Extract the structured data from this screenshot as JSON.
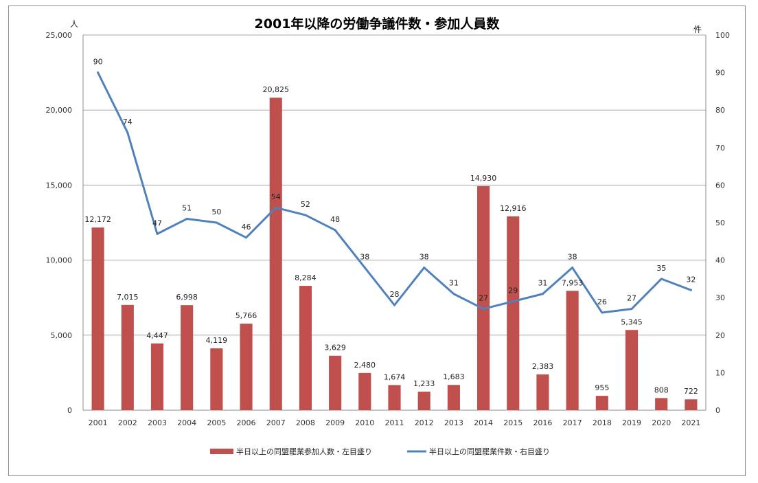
{
  "chart_data": {
    "type": "bar+line",
    "title": "2001年以降の労働争議件数・参加人員数",
    "left_unit": "人",
    "right_unit": "件",
    "categories": [
      "2001",
      "2002",
      "2003",
      "2004",
      "2005",
      "2006",
      "2007",
      "2008",
      "2009",
      "2010",
      "2011",
      "2012",
      "2013",
      "2014",
      "2015",
      "2016",
      "2017",
      "2018",
      "2019",
      "2020",
      "2021"
    ],
    "series": [
      {
        "name": "半日以上の同盟罷業参加人数・左目盛り",
        "type": "bar",
        "axis": "left",
        "color": "#c0504d",
        "values": [
          12172,
          7015,
          4447,
          6998,
          4119,
          5766,
          20825,
          8284,
          3629,
          2480,
          1674,
          1233,
          1683,
          14930,
          12916,
          2383,
          7953,
          955,
          5345,
          808,
          722
        ],
        "labels": [
          "12,172",
          "7,015",
          "4,447",
          "6,998",
          "4,119",
          "5,766",
          "20,825",
          "8,284",
          "3,629",
          "2,480",
          "1,674",
          "1,233",
          "1,683",
          "14,930",
          "12,916",
          "2,383",
          "7,953",
          "955",
          "5,345",
          "808",
          "722"
        ]
      },
      {
        "name": "半日以上の同盟罷業件数・右目盛り",
        "type": "line",
        "axis": "right",
        "color": "#4f81bd",
        "values": [
          90,
          74,
          47,
          51,
          50,
          46,
          54,
          52,
          48,
          38,
          28,
          38,
          31,
          27,
          29,
          31,
          38,
          26,
          27,
          35,
          32
        ],
        "labels": [
          "90",
          "74",
          "47",
          "51",
          "50",
          "46",
          "54",
          "52",
          "48",
          "38",
          "28",
          "38",
          "31",
          "27",
          "29",
          "31",
          "38",
          "26",
          "27",
          "35",
          "32"
        ]
      }
    ],
    "left_axis": {
      "ylim": [
        0,
        25000
      ],
      "ticks": [
        0,
        5000,
        10000,
        15000,
        20000,
        25000
      ],
      "tick_labels": [
        "0",
        "5,000",
        "10,000",
        "15,000",
        "20,000",
        "25,000"
      ]
    },
    "right_axis": {
      "ylim": [
        0,
        100
      ],
      "ticks": [
        0,
        10,
        20,
        30,
        40,
        50,
        60,
        70,
        80,
        90,
        100
      ],
      "tick_labels": [
        "0",
        "10",
        "20",
        "30",
        "40",
        "50",
        "60",
        "70",
        "80",
        "90",
        "100"
      ]
    },
    "grid": true,
    "legend_position": "bottom"
  }
}
